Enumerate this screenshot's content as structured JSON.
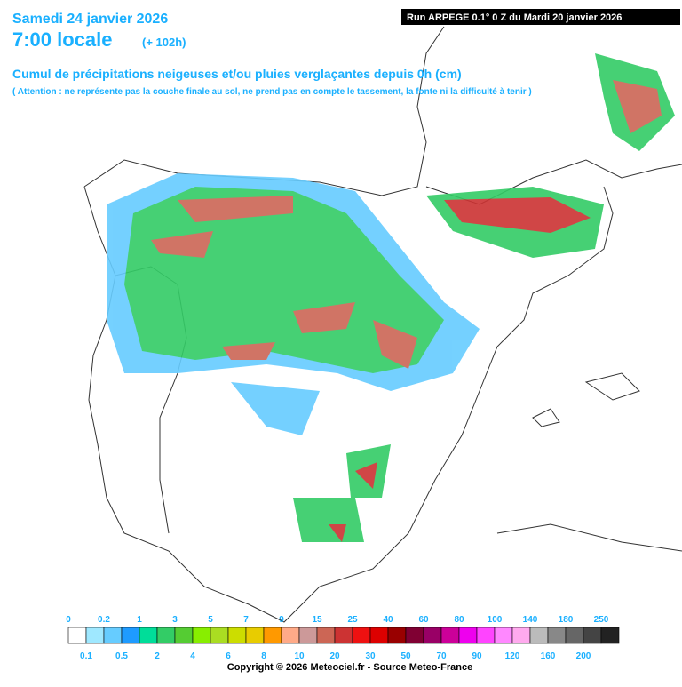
{
  "header": {
    "date": "Samedi 24 janvier 2026",
    "time": "7:00 locale",
    "lead": "(+ 102h)",
    "run": "Run ARPEGE 0.1° 0 Z du Mardi 20 janvier 2026",
    "title": "Cumul de précipitations neigeuses et/ou pluies verglaçantes depuis 0h (cm)",
    "note": "( Attention : ne représente pas la couche finale au sol, ne prend pas en compte le tassement, la fonte ni la difficulté à tenir )"
  },
  "legend": {
    "levels": [
      0,
      0.1,
      0.2,
      0.5,
      1,
      2,
      3,
      4,
      5,
      6,
      7,
      8,
      9,
      10,
      15,
      20,
      25,
      30,
      40,
      50,
      60,
      70,
      80,
      90,
      100,
      120,
      140,
      160,
      180,
      200,
      250
    ],
    "colors": [
      "#ffffff",
      "#9fe8ff",
      "#66ccff",
      "#1e9bff",
      "#00dd99",
      "#33cc66",
      "#55cc33",
      "#88ee00",
      "#aadd22",
      "#ccdd00",
      "#e8cc00",
      "#ff9900",
      "#ffaa88",
      "#cc9999",
      "#cc6655",
      "#cc3333",
      "#ee1111",
      "#dd0000",
      "#990000",
      "#800033",
      "#990066",
      "#cc0099",
      "#ee00ee",
      "#ff44ff",
      "#ff88ff",
      "#ffaaee",
      "#bbbbbb",
      "#888888",
      "#666666",
      "#444444",
      "#222222"
    ]
  },
  "footer": {
    "copyright": "Copyright © 2026 Meteociel.fr - Source Meteo-France"
  }
}
